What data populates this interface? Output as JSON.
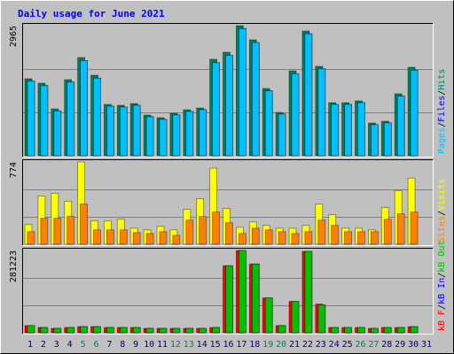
{
  "chart_data": [
    {
      "type": "bar",
      "title": "Daily usage for June 2021",
      "separator": "/",
      "ylim": [
        0,
        2965
      ],
      "yticks": [
        2965
      ],
      "grid": true,
      "legend_reverse": true,
      "series": [
        {
          "name": "Hits",
          "color": "#00805c",
          "values": [
            1755,
            1654,
            1069,
            1735,
            2239,
            1835,
            1170,
            1150,
            1190,
            928,
            867,
            968,
            1049,
            1089,
            2199,
            2360,
            2965,
            2642,
            1533,
            988,
            1936,
            2844,
            2037,
            1210,
            1210,
            1251,
            746,
            787,
            1412,
            2017,
            0
          ]
        },
        {
          "name": "Files",
          "color": "#0000ff",
          "values": [
            1700,
            1600,
            1020,
            1680,
            2170,
            1770,
            1130,
            1110,
            1150,
            890,
            830,
            930,
            1010,
            1050,
            2120,
            2290,
            2900,
            2580,
            1480,
            950,
            1870,
            2780,
            1980,
            1170,
            1170,
            1210,
            710,
            750,
            1360,
            1950,
            0
          ]
        },
        {
          "name": "Pages",
          "color": "#00c0ff",
          "values": [
            1700,
            1600,
            1020,
            1680,
            2170,
            1770,
            1130,
            1110,
            1150,
            890,
            830,
            930,
            1010,
            1050,
            2120,
            2290,
            2900,
            2580,
            1480,
            950,
            1870,
            2780,
            1980,
            1170,
            1170,
            1210,
            710,
            750,
            1360,
            1950,
            0
          ]
        }
      ]
    },
    {
      "type": "bar",
      "ylim": [
        0,
        774
      ],
      "yticks": [
        774
      ],
      "grid": true,
      "legend_reverse": true,
      "series": [
        {
          "name": "Visits",
          "color": "#ffff00",
          "values": [
            185,
            454,
            479,
            404,
            774,
            219,
            219,
            235,
            151,
            135,
            168,
            135,
            328,
            429,
            715,
            336,
            160,
            210,
            177,
            151,
            151,
            177,
            378,
            278,
            151,
            151,
            135,
            345,
            505,
            622,
            0
          ]
        },
        {
          "name": "Sites",
          "color": "#ff8000",
          "values": [
            118,
            244,
            244,
            261,
            378,
            135,
            135,
            135,
            109,
            101,
            118,
            84,
            227,
            261,
            303,
            202,
            101,
            151,
            135,
            118,
            101,
            118,
            227,
            177,
            118,
            118,
            118,
            235,
            286,
            303,
            0
          ]
        }
      ]
    },
    {
      "type": "bar",
      "ylim": [
        0,
        281223
      ],
      "yticks": [
        281223
      ],
      "grid": true,
      "legend_reverse": false,
      "categories": [
        "1",
        "2",
        "3",
        "4",
        "5",
        "6",
        "7",
        "8",
        "9",
        "10",
        "11",
        "12",
        "13",
        "14",
        "15",
        "16",
        "17",
        "18",
        "19",
        "20",
        "21",
        "22",
        "23",
        "24",
        "25",
        "26",
        "27",
        "28",
        "29",
        "30",
        "31"
      ],
      "weekend_index": [
        4,
        5,
        11,
        12,
        18,
        19,
        25,
        26
      ],
      "weekend_color": "#00805c",
      "label_color": "#000080",
      "series": [
        {
          "name": "kB F",
          "color": "#ff0000",
          "values": [
            24500,
            18000,
            15000,
            18000,
            21000,
            21000,
            18000,
            18000,
            18000,
            15000,
            15000,
            15000,
            15000,
            15000,
            18000,
            229000,
            281223,
            235000,
            119000,
            24500,
            107000,
            278000,
            98000,
            18000,
            18000,
            18000,
            15000,
            18000,
            18000,
            21000,
            0
          ]
        },
        {
          "name": "kB In",
          "color": "#0000ff",
          "values": [
            24500,
            18000,
            15000,
            18000,
            21000,
            21000,
            18000,
            18000,
            18000,
            15000,
            15000,
            15000,
            15000,
            15000,
            18000,
            229000,
            281223,
            235000,
            119000,
            24500,
            107000,
            278000,
            95000,
            18000,
            18000,
            18000,
            15000,
            18000,
            18000,
            21000,
            0
          ]
        },
        {
          "name": "kB Out",
          "color": "#00c000",
          "values": [
            24500,
            18000,
            15000,
            18000,
            21000,
            21000,
            18000,
            18000,
            18000,
            15000,
            15000,
            15000,
            15000,
            15000,
            18000,
            229000,
            281223,
            235000,
            119000,
            24500,
            107000,
            278000,
            95000,
            18000,
            18000,
            18000,
            15000,
            18000,
            18000,
            21000,
            0
          ]
        }
      ]
    }
  ]
}
